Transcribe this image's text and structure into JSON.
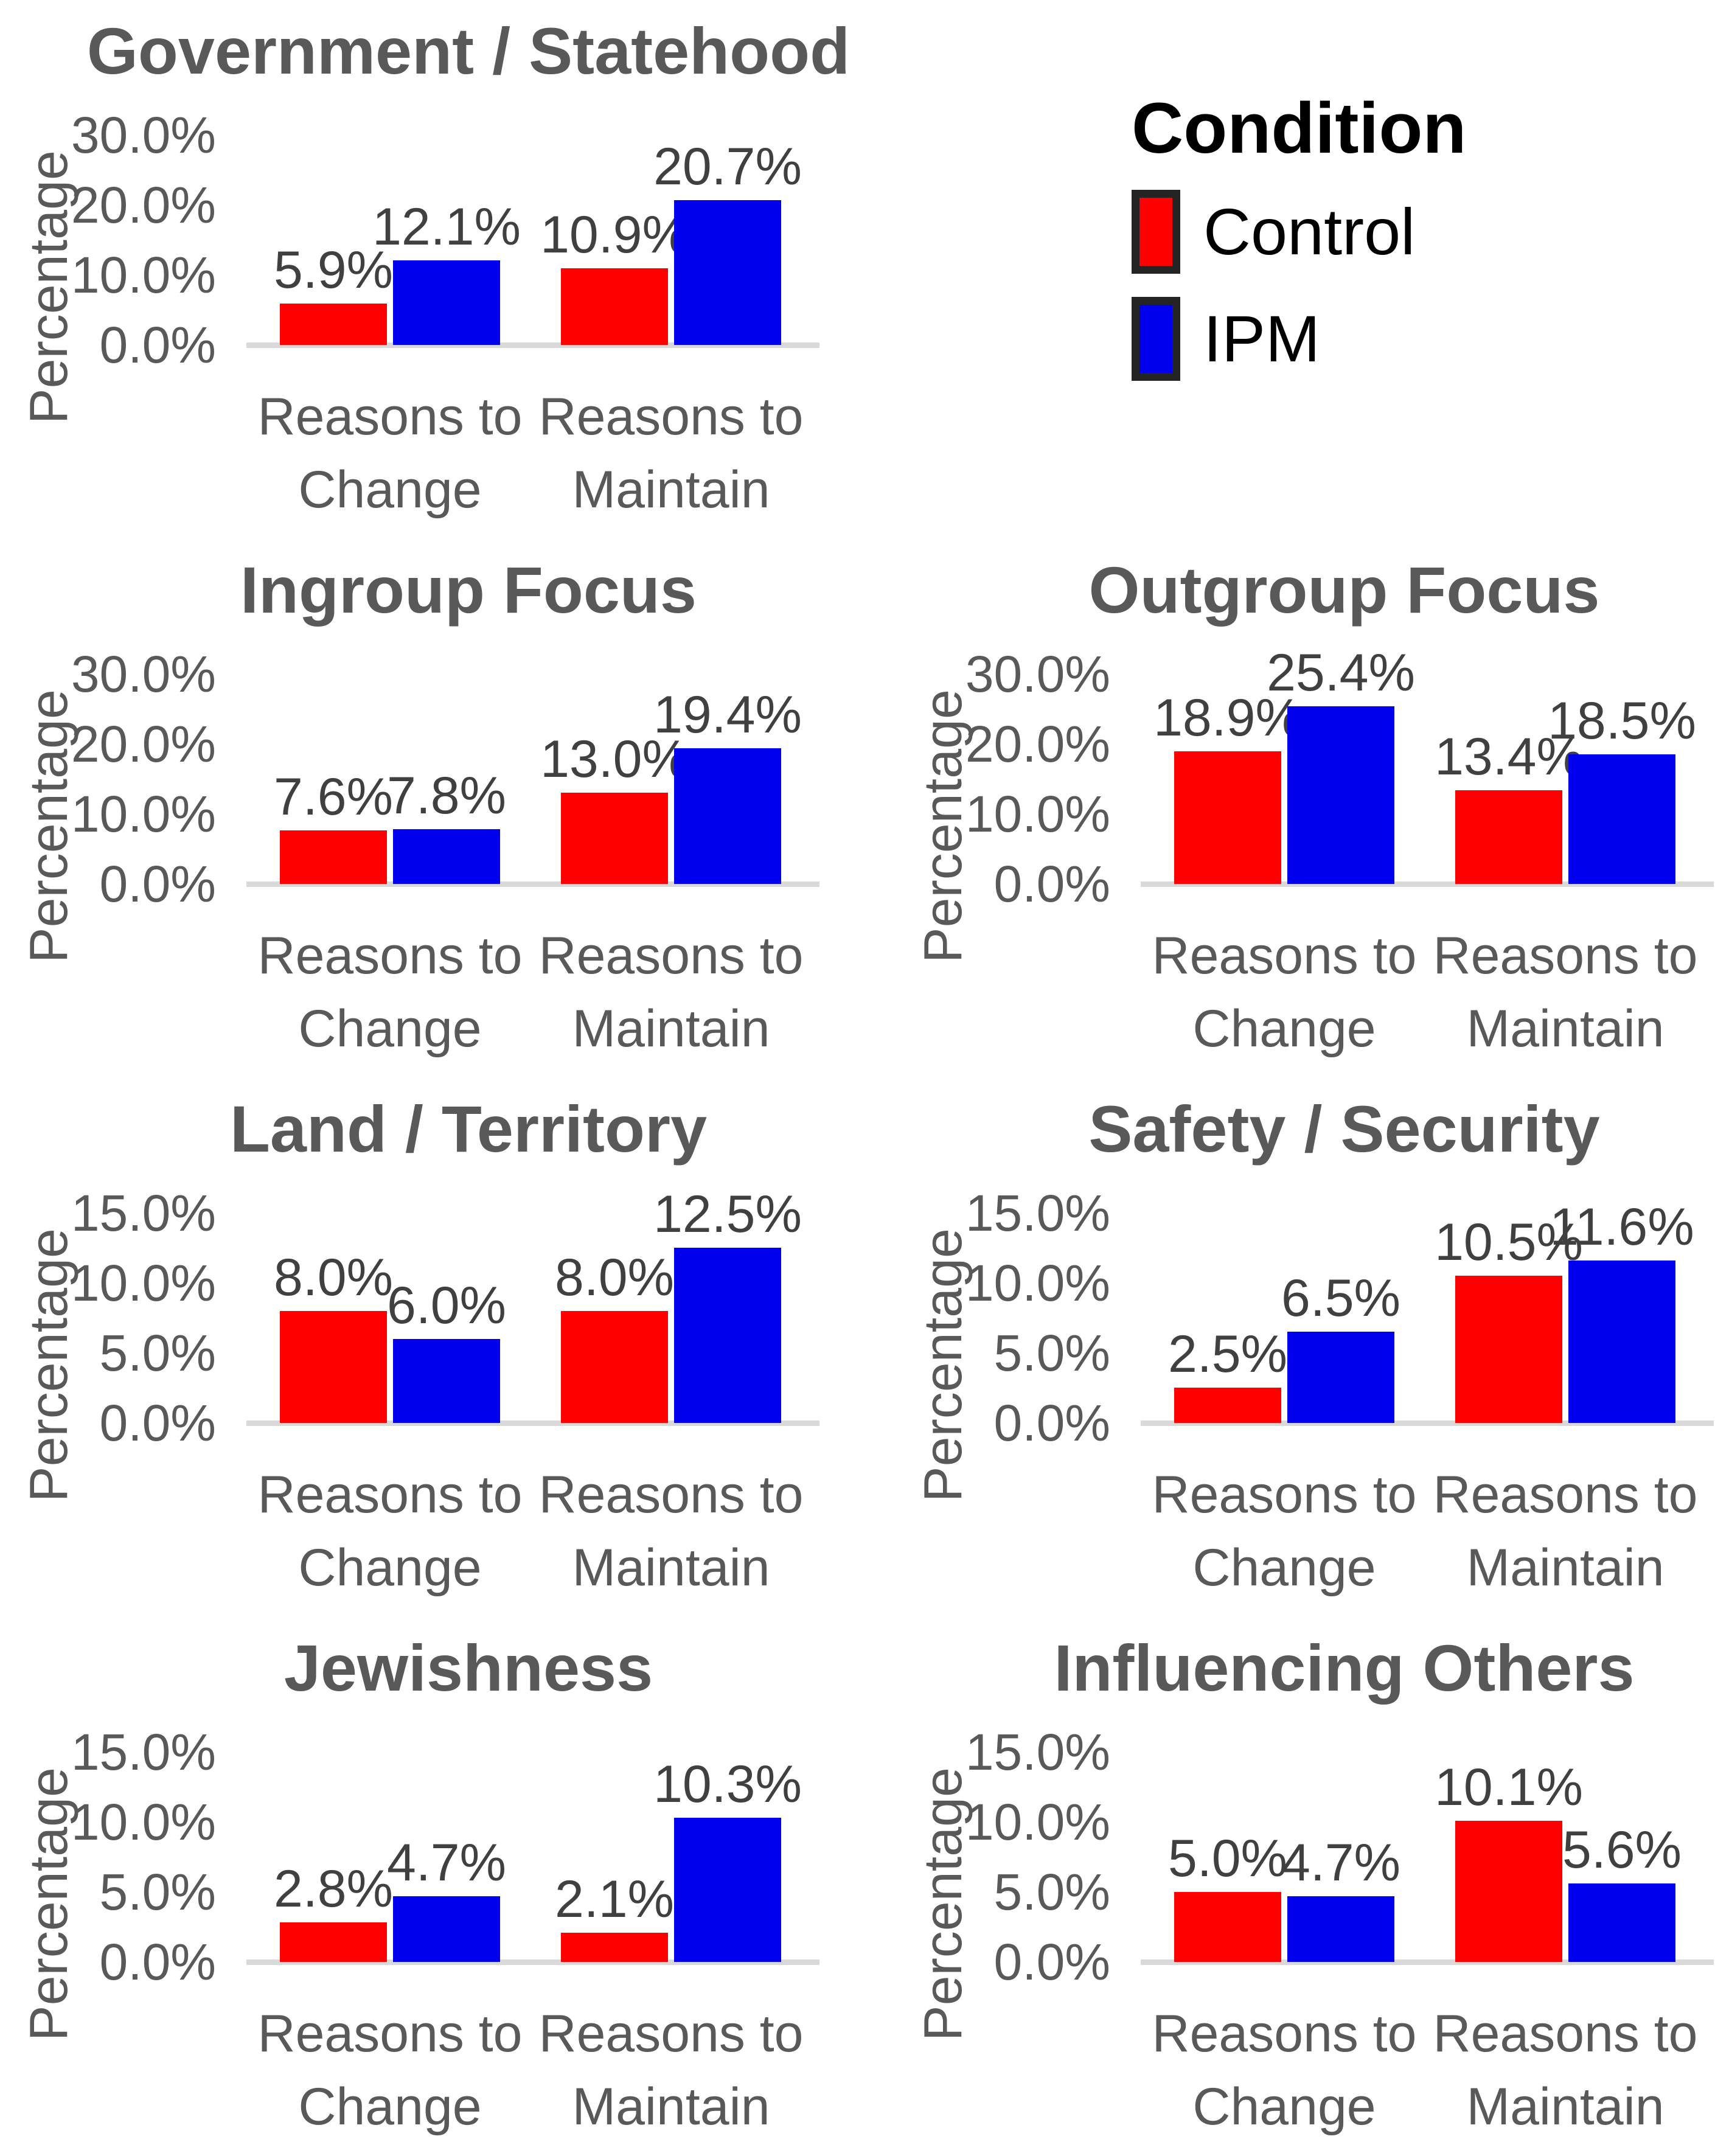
{
  "legend": {
    "title": "Condition",
    "items": [
      {
        "label": "Control",
        "color": "#FF0000"
      },
      {
        "label": "IPM",
        "color": "#0000EE"
      }
    ]
  },
  "palette": {
    "control_red": "#FF0000",
    "ipm_blue": "#0000EE",
    "title_gray": "#595959",
    "tick_gray": "#595959",
    "data_label_gray": "#404040",
    "axis_line_gray": "#D9D9D9",
    "legend_text": "#000000"
  },
  "chart_data": [
    {
      "type": "bar",
      "title": "Government / Statehood",
      "ylabel": "Percentage",
      "ylim": [
        0,
        30
      ],
      "yticks": [
        "0.0%",
        "10.0%",
        "20.0%",
        "30.0%"
      ],
      "categories": [
        "Reasons to Change",
        "Reasons to Maintain"
      ],
      "series": [
        {
          "name": "Control",
          "color": "#FF0000",
          "values": [
            5.9,
            10.9
          ],
          "labels": [
            "5.9%",
            "10.9%"
          ]
        },
        {
          "name": "IPM",
          "color": "#0000EE",
          "values": [
            12.1,
            20.7
          ],
          "labels": [
            "12.1%",
            "20.7%"
          ]
        }
      ]
    },
    {
      "type": "bar",
      "title": "Ingroup Focus",
      "ylabel": "Percentage",
      "ylim": [
        0,
        30
      ],
      "yticks": [
        "0.0%",
        "10.0%",
        "20.0%",
        "30.0%"
      ],
      "categories": [
        "Reasons to Change",
        "Reasons to Maintain"
      ],
      "series": [
        {
          "name": "Control",
          "color": "#FF0000",
          "values": [
            7.6,
            13.0
          ],
          "labels": [
            "7.6%",
            "13.0%"
          ]
        },
        {
          "name": "IPM",
          "color": "#0000EE",
          "values": [
            7.8,
            19.4
          ],
          "labels": [
            "7.8%",
            "19.4%"
          ]
        }
      ]
    },
    {
      "type": "bar",
      "title": "Outgroup Focus",
      "ylabel": "Percentage",
      "ylim": [
        0,
        30
      ],
      "yticks": [
        "0.0%",
        "10.0%",
        "20.0%",
        "30.0%"
      ],
      "categories": [
        "Reasons to Change",
        "Reasons to Maintain"
      ],
      "series": [
        {
          "name": "Control",
          "color": "#FF0000",
          "values": [
            18.9,
            13.4
          ],
          "labels": [
            "18.9%",
            "13.4%"
          ]
        },
        {
          "name": "IPM",
          "color": "#0000EE",
          "values": [
            25.4,
            18.5
          ],
          "labels": [
            "25.4%",
            "18.5%"
          ]
        }
      ]
    },
    {
      "type": "bar",
      "title": "Land / Territory",
      "ylabel": "Percentage",
      "ylim": [
        0,
        15
      ],
      "yticks": [
        "0.0%",
        "5.0%",
        "10.0%",
        "15.0%"
      ],
      "categories": [
        "Reasons to Change",
        "Reasons to Maintain"
      ],
      "series": [
        {
          "name": "Control",
          "color": "#FF0000",
          "values": [
            8.0,
            8.0
          ],
          "labels": [
            "8.0%",
            "8.0%"
          ]
        },
        {
          "name": "IPM",
          "color": "#0000EE",
          "values": [
            6.0,
            12.5
          ],
          "labels": [
            "6.0%",
            "12.5%"
          ]
        }
      ]
    },
    {
      "type": "bar",
      "title": "Safety / Security",
      "ylabel": "Percentage",
      "ylim": [
        0,
        15
      ],
      "yticks": [
        "0.0%",
        "5.0%",
        "10.0%",
        "15.0%"
      ],
      "categories": [
        "Reasons to Change",
        "Reasons to Maintain"
      ],
      "series": [
        {
          "name": "Control",
          "color": "#FF0000",
          "values": [
            2.5,
            10.5
          ],
          "labels": [
            "2.5%",
            "10.5%"
          ]
        },
        {
          "name": "IPM",
          "color": "#0000EE",
          "values": [
            6.5,
            11.6
          ],
          "labels": [
            "6.5%",
            "11.6%"
          ]
        }
      ]
    },
    {
      "type": "bar",
      "title": "Jewishness",
      "ylabel": "Percentage",
      "ylim": [
        0,
        15
      ],
      "yticks": [
        "0.0%",
        "5.0%",
        "10.0%",
        "15.0%"
      ],
      "categories": [
        "Reasons to Change",
        "Reasons to Maintain"
      ],
      "series": [
        {
          "name": "Control",
          "color": "#FF0000",
          "values": [
            2.8,
            2.1
          ],
          "labels": [
            "2.8%",
            "2.1%"
          ]
        },
        {
          "name": "IPM",
          "color": "#0000EE",
          "values": [
            4.7,
            10.3
          ],
          "labels": [
            "4.7%",
            "10.3%"
          ]
        }
      ]
    },
    {
      "type": "bar",
      "title": "Influencing Others",
      "ylabel": "Percentage",
      "ylim": [
        0,
        15
      ],
      "yticks": [
        "0.0%",
        "5.0%",
        "10.0%",
        "15.0%"
      ],
      "categories": [
        "Reasons to Change",
        "Reasons to Maintain"
      ],
      "series": [
        {
          "name": "Control",
          "color": "#FF0000",
          "values": [
            5.0,
            10.1
          ],
          "labels": [
            "5.0%",
            "10.1%"
          ]
        },
        {
          "name": "IPM",
          "color": "#0000EE",
          "values": [
            4.7,
            5.6
          ],
          "labels": [
            "4.7%",
            "5.6%"
          ]
        }
      ]
    }
  ]
}
